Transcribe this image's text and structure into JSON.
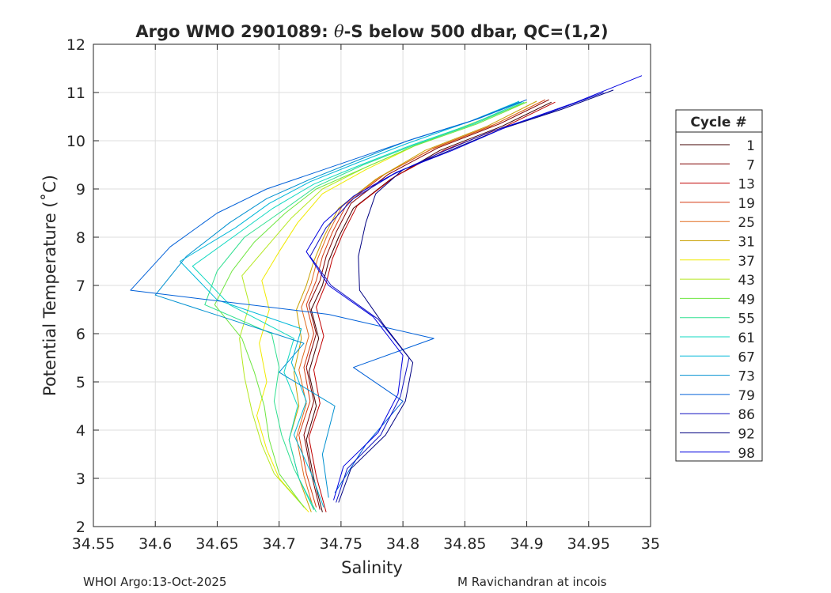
{
  "chart_data": {
    "type": "line",
    "title_prefix": "Argo WMO 2901089: ",
    "title_theta": "θ",
    "title_suffix": "-S below 500 dbar,  QC=(1,2)",
    "xlabel": "Salinity",
    "ylabel": "Potential Temperature (˚C)",
    "xlim": [
      34.55,
      35.0
    ],
    "ylim": [
      2,
      12
    ],
    "xticks": [
      34.55,
      34.6,
      34.65,
      34.7,
      34.75,
      34.8,
      34.85,
      34.9,
      34.95,
      35.0
    ],
    "xtick_labels": [
      "34.55",
      "34.6",
      "34.65",
      "34.7",
      "34.75",
      "34.8",
      "34.85",
      "34.9",
      "34.95",
      "35"
    ],
    "yticks": [
      2,
      3,
      4,
      5,
      6,
      7,
      8,
      9,
      10,
      11,
      12
    ],
    "ytick_labels": [
      "2",
      "3",
      "4",
      "5",
      "6",
      "7",
      "8",
      "9",
      "10",
      "11",
      "12"
    ],
    "grid": true,
    "legend": {
      "title": "Cycle #",
      "position": "right",
      "entries": [
        {
          "label": "1",
          "color": "#400000"
        },
        {
          "label": "7",
          "color": "#800000"
        },
        {
          "label": "13",
          "color": "#c00000"
        },
        {
          "label": "19",
          "color": "#d43a10"
        },
        {
          "label": "25",
          "color": "#e06a1e"
        },
        {
          "label": "31",
          "color": "#c8a000"
        },
        {
          "label": "37",
          "color": "#f0ea00"
        },
        {
          "label": "43",
          "color": "#b4e820"
        },
        {
          "label": "49",
          "color": "#6ee640"
        },
        {
          "label": "55",
          "color": "#30e090"
        },
        {
          "label": "61",
          "color": "#10d8c0"
        },
        {
          "label": "67",
          "color": "#00b8d8"
        },
        {
          "label": "73",
          "color": "#0090d0"
        },
        {
          "label": "79",
          "color": "#0060d8"
        },
        {
          "label": "86",
          "color": "#1010c0"
        },
        {
          "label": "92",
          "color": "#000080"
        },
        {
          "label": "98",
          "color": "#0000e0"
        }
      ]
    },
    "series": [
      {
        "name": "1",
        "color": "#400000",
        "s": [
          34.735,
          34.728,
          34.722,
          34.73,
          34.724,
          34.732,
          34.726,
          34.735,
          34.74,
          34.748,
          34.76,
          34.79,
          34.83,
          34.88,
          34.92
        ],
        "t": [
          2.3,
          3.0,
          3.8,
          4.5,
          5.2,
          5.9,
          6.5,
          7.0,
          7.5,
          8.0,
          8.6,
          9.2,
          9.8,
          10.3,
          10.8
        ]
      },
      {
        "name": "7",
        "color": "#800000",
        "s": [
          34.733,
          34.726,
          34.72,
          34.728,
          34.722,
          34.73,
          34.724,
          34.733,
          34.738,
          34.746,
          34.758,
          34.788,
          34.828,
          34.878,
          34.918
        ],
        "t": [
          2.35,
          3.1,
          3.9,
          4.6,
          5.3,
          6.0,
          6.6,
          7.1,
          7.6,
          8.1,
          8.7,
          9.3,
          9.85,
          10.35,
          10.85
        ]
      },
      {
        "name": "13",
        "color": "#c00000",
        "s": [
          34.738,
          34.73,
          34.724,
          34.733,
          34.728,
          34.736,
          34.73,
          34.738,
          34.743,
          34.751,
          34.763,
          34.793,
          34.833,
          34.883,
          34.923
        ],
        "t": [
          2.3,
          3.05,
          3.85,
          4.55,
          5.25,
          5.95,
          6.55,
          7.05,
          7.55,
          8.05,
          8.65,
          9.25,
          9.8,
          10.3,
          10.8
        ]
      },
      {
        "name": "19",
        "color": "#d43a10",
        "s": [
          34.73,
          34.722,
          34.716,
          34.725,
          34.72,
          34.728,
          34.722,
          34.73,
          34.735,
          34.743,
          34.755,
          34.785,
          34.825,
          34.875,
          34.915
        ],
        "t": [
          2.4,
          3.1,
          3.9,
          4.6,
          5.3,
          6.0,
          6.6,
          7.1,
          7.6,
          8.1,
          8.7,
          9.3,
          9.85,
          10.35,
          10.85
        ]
      },
      {
        "name": "25",
        "color": "#e06a1e",
        "s": [
          34.728,
          34.72,
          34.714,
          34.722,
          34.716,
          34.724,
          34.718,
          34.726,
          34.731,
          34.739,
          34.751,
          34.781,
          34.821,
          34.871,
          34.911
        ],
        "t": [
          2.35,
          3.05,
          3.85,
          4.55,
          5.25,
          5.95,
          6.55,
          7.05,
          7.55,
          8.05,
          8.65,
          9.25,
          9.8,
          10.3,
          10.8
        ]
      },
      {
        "name": "31",
        "color": "#c8a000",
        "s": [
          34.726,
          34.716,
          34.708,
          34.716,
          34.712,
          34.718,
          34.714,
          34.722,
          34.728,
          34.736,
          34.748,
          34.778,
          34.818,
          34.868,
          34.908
        ],
        "t": [
          2.3,
          3.0,
          3.8,
          4.5,
          5.2,
          5.9,
          6.5,
          7.0,
          7.5,
          8.0,
          8.6,
          9.2,
          9.8,
          10.3,
          10.82
        ]
      },
      {
        "name": "37",
        "color": "#f0ea00",
        "s": [
          34.724,
          34.7,
          34.69,
          34.682,
          34.69,
          34.684,
          34.692,
          34.686,
          34.7,
          34.715,
          34.735,
          34.77,
          34.81,
          34.86,
          34.9
        ],
        "t": [
          2.3,
          3.0,
          3.6,
          4.3,
          5.0,
          5.8,
          6.5,
          7.1,
          7.7,
          8.3,
          8.9,
          9.4,
          9.9,
          10.4,
          10.8
        ]
      },
      {
        "name": "43",
        "color": "#b4e820",
        "s": [
          34.722,
          34.696,
          34.686,
          34.678,
          34.672,
          34.668,
          34.676,
          34.67,
          34.69,
          34.71,
          34.735,
          34.77,
          34.81,
          34.86,
          34.9
        ],
        "t": [
          2.35,
          3.1,
          3.7,
          4.4,
          5.1,
          5.9,
          6.6,
          7.2,
          7.8,
          8.4,
          9.0,
          9.45,
          9.9,
          10.4,
          10.8
        ]
      },
      {
        "name": "49",
        "color": "#6ee640",
        "s": [
          34.72,
          34.7,
          34.692,
          34.688,
          34.68,
          34.67,
          34.648,
          34.662,
          34.68,
          34.705,
          34.73,
          34.77,
          34.81,
          34.86,
          34.9
        ],
        "t": [
          2.4,
          3.1,
          3.8,
          4.5,
          5.2,
          5.9,
          6.6,
          7.3,
          7.9,
          8.5,
          9.0,
          9.45,
          9.9,
          10.35,
          10.8
        ]
      },
      {
        "name": "55",
        "color": "#30e090",
        "s": [
          34.73,
          34.712,
          34.702,
          34.696,
          34.7,
          34.694,
          34.64,
          34.65,
          34.672,
          34.7,
          34.73,
          34.768,
          34.808,
          34.858,
          34.898
        ],
        "t": [
          2.3,
          3.2,
          3.9,
          4.6,
          5.3,
          6.0,
          6.6,
          7.3,
          8.0,
          8.5,
          9.05,
          9.5,
          9.9,
          10.35,
          10.8
        ]
      },
      {
        "name": "61",
        "color": "#10d8c0",
        "s": [
          34.728,
          34.716,
          34.708,
          34.715,
          34.704,
          34.712,
          34.66,
          34.63,
          34.668,
          34.695,
          34.728,
          34.766,
          34.806,
          34.856,
          34.896
        ],
        "t": [
          2.35,
          3.0,
          3.8,
          4.5,
          5.2,
          5.9,
          6.6,
          7.4,
          8.1,
          8.6,
          9.1,
          9.5,
          9.9,
          10.35,
          10.8
        ]
      },
      {
        "name": "67",
        "color": "#00b8d8",
        "s": [
          34.736,
          34.726,
          34.712,
          34.722,
          34.71,
          34.718,
          34.65,
          34.62,
          34.665,
          34.692,
          34.725,
          34.764,
          34.804,
          34.854,
          34.894
        ],
        "t": [
          2.4,
          3.1,
          3.9,
          4.6,
          5.4,
          6.1,
          6.7,
          7.5,
          8.2,
          8.7,
          9.15,
          9.55,
          9.95,
          10.4,
          10.82
        ]
      },
      {
        "name": "73",
        "color": "#0090d0",
        "s": [
          34.74,
          34.735,
          34.745,
          34.7,
          34.72,
          34.66,
          34.6,
          34.625,
          34.66,
          34.69,
          34.725,
          34.764,
          34.804,
          34.854,
          34.894
        ],
        "t": [
          2.6,
          3.5,
          4.5,
          5.2,
          5.8,
          6.3,
          6.8,
          7.6,
          8.3,
          8.8,
          9.2,
          9.6,
          10.0,
          10.4,
          10.8
        ]
      },
      {
        "name": "79",
        "color": "#0060d8",
        "s": [
          34.745,
          34.77,
          34.8,
          34.76,
          34.825,
          34.74,
          34.58,
          34.612,
          34.65,
          34.69,
          34.73,
          34.77,
          34.81,
          34.86,
          34.9
        ],
        "t": [
          2.7,
          3.7,
          4.6,
          5.3,
          5.9,
          6.4,
          6.9,
          7.8,
          8.5,
          9.0,
          9.35,
          9.7,
          10.05,
          10.45,
          10.85
        ]
      },
      {
        "name": "86",
        "color": "#1010c0",
        "s": [
          34.746,
          34.755,
          34.782,
          34.798,
          34.805,
          34.78,
          34.742,
          34.725,
          34.738,
          34.76,
          34.792,
          34.83,
          34.872,
          34.92,
          34.962
        ],
        "t": [
          2.5,
          3.2,
          3.9,
          4.7,
          5.5,
          6.3,
          7.0,
          7.6,
          8.2,
          8.8,
          9.3,
          9.75,
          10.2,
          10.6,
          11.0
        ]
      },
      {
        "name": "92",
        "color": "#000080",
        "s": [
          34.748,
          34.758,
          34.786,
          34.802,
          34.808,
          34.784,
          34.765,
          34.764,
          34.77,
          34.778,
          34.8,
          34.838,
          34.88,
          34.928,
          34.97
        ],
        "t": [
          2.5,
          3.2,
          3.9,
          4.6,
          5.4,
          6.2,
          6.9,
          7.6,
          8.3,
          8.9,
          9.4,
          9.8,
          10.25,
          10.65,
          11.05
        ]
      },
      {
        "name": "98",
        "color": "#0000e0",
        "s": [
          34.744,
          34.752,
          34.78,
          34.796,
          34.8,
          34.776,
          34.74,
          34.722,
          34.736,
          34.76,
          34.795,
          34.84,
          34.885,
          34.94,
          34.993
        ],
        "t": [
          2.55,
          3.25,
          3.95,
          4.75,
          5.55,
          6.35,
          7.0,
          7.7,
          8.3,
          8.85,
          9.35,
          9.8,
          10.3,
          10.8,
          11.35
        ]
      }
    ]
  },
  "footer": {
    "left": "WHOI Argo:13-Oct-2025",
    "right": "M Ravichandran at incois"
  }
}
